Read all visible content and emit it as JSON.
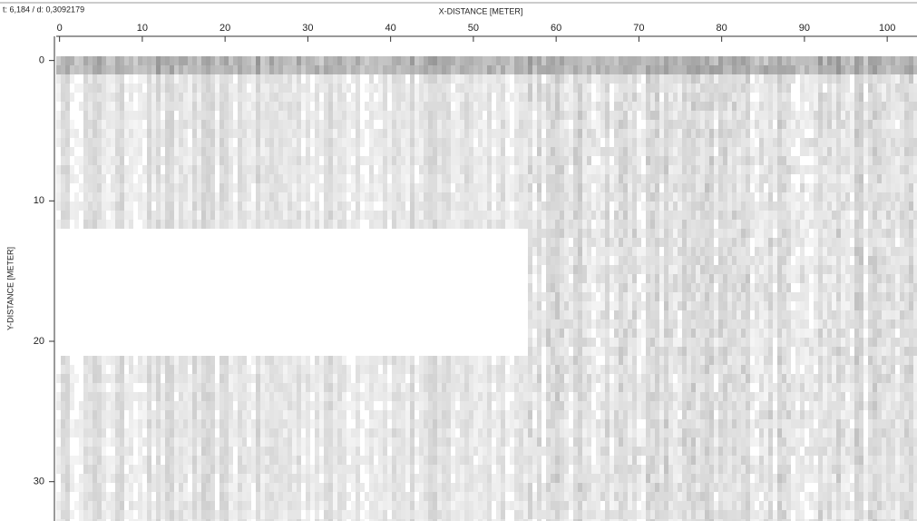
{
  "chart_data": {
    "type": "image",
    "header": "t: 6,184 / d: 0,3092179",
    "xlabel": "X-DISTANCE [METER]",
    "ylabel": "Y-DISTANCE [METER]",
    "xlim": [
      -0.4,
      103.6
    ],
    "xticks": [
      0,
      10,
      20,
      30,
      40,
      50,
      60,
      70,
      80,
      90,
      100
    ],
    "ylim": [
      -0.3,
      32.8
    ],
    "yticks": [
      0,
      10,
      20,
      30
    ],
    "y_inverted": true
  }
}
